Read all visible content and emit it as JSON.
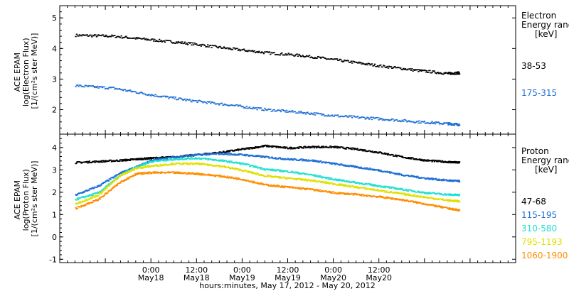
{
  "chart_data": [
    {
      "type": "scatter",
      "name": "electron-panel",
      "ylabel": [
        "ACE EPAM",
        "log(Electron Flux)",
        "[1/(cm²s ster MeV)]"
      ],
      "ylim": [
        1.2,
        5.4
      ],
      "yticks": [
        2,
        3,
        4,
        5
      ],
      "legend_title": [
        "Electron",
        "Energy ranges",
        "[keV]"
      ],
      "series": [
        {
          "name": "38-53",
          "color": "#000000",
          "x": [
            -20,
            -10,
            0,
            10,
            20,
            30,
            40,
            50,
            60,
            70,
            78,
            81
          ],
          "y": [
            4.45,
            4.42,
            4.3,
            4.18,
            4.02,
            3.88,
            3.78,
            3.62,
            3.45,
            3.3,
            3.2,
            3.22
          ]
        },
        {
          "name": "175-315",
          "color": "#1f6fd6",
          "x": [
            -20,
            -10,
            0,
            10,
            20,
            30,
            40,
            50,
            60,
            70,
            78,
            81
          ],
          "y": [
            2.8,
            2.72,
            2.5,
            2.32,
            2.18,
            2.02,
            1.92,
            1.8,
            1.72,
            1.62,
            1.56,
            1.53
          ]
        }
      ]
    },
    {
      "type": "scatter",
      "name": "proton-panel",
      "ylabel": [
        "ACE EPAM",
        "log(Proton Flux)",
        "[1/(cm²s ster MeV)]"
      ],
      "ylim": [
        -1.15,
        4.6
      ],
      "yticks": [
        -1,
        0,
        1,
        2,
        3,
        4
      ],
      "legend_title": [
        "Proton",
        "Energy ranges",
        "[keV]"
      ],
      "series": [
        {
          "name": "47-68",
          "color": "#000000",
          "x": [
            -20,
            -14,
            -8,
            -4,
            0,
            6,
            12,
            18,
            24,
            30,
            36,
            42,
            48,
            54,
            60,
            66,
            72,
            78,
            81
          ],
          "y": [
            3.35,
            3.4,
            3.45,
            3.5,
            3.55,
            3.6,
            3.7,
            3.8,
            3.95,
            4.1,
            4.0,
            4.05,
            4.05,
            3.95,
            3.8,
            3.6,
            3.45,
            3.38,
            3.35
          ]
        },
        {
          "name": "115-195",
          "color": "#1f6fd6",
          "x": [
            -20,
            -14,
            -8,
            -4,
            0,
            6,
            12,
            18,
            24,
            30,
            36,
            42,
            48,
            54,
            60,
            66,
            72,
            78,
            81
          ],
          "y": [
            1.9,
            2.3,
            2.9,
            3.15,
            3.45,
            3.6,
            3.7,
            3.75,
            3.7,
            3.6,
            3.5,
            3.45,
            3.3,
            3.15,
            3.0,
            2.8,
            2.65,
            2.55,
            2.52
          ]
        },
        {
          "name": "310-580",
          "color": "#23e0d0",
          "x": [
            -20,
            -14,
            -8,
            -4,
            0,
            6,
            12,
            18,
            24,
            30,
            36,
            42,
            48,
            54,
            60,
            66,
            72,
            78,
            81
          ],
          "y": [
            1.7,
            2.0,
            2.8,
            3.15,
            3.4,
            3.5,
            3.55,
            3.45,
            3.3,
            3.05,
            2.95,
            2.8,
            2.6,
            2.45,
            2.3,
            2.15,
            2.0,
            1.92,
            1.9
          ]
        },
        {
          "name": "795-1193",
          "color": "#e0e000",
          "x": [
            -20,
            -14,
            -8,
            -4,
            0,
            6,
            12,
            18,
            24,
            30,
            36,
            42,
            48,
            54,
            60,
            66,
            72,
            78,
            81
          ],
          "y": [
            1.5,
            1.9,
            2.8,
            3.1,
            3.2,
            3.3,
            3.3,
            3.2,
            3.0,
            2.75,
            2.65,
            2.55,
            2.4,
            2.25,
            2.1,
            1.95,
            1.8,
            1.66,
            1.62
          ]
        },
        {
          "name": "1060-1900",
          "color": "#ff8c00",
          "x": [
            -20,
            -14,
            -8,
            -4,
            0,
            6,
            12,
            18,
            24,
            30,
            36,
            42,
            48,
            54,
            60,
            66,
            72,
            78,
            81
          ],
          "y": [
            1.3,
            1.7,
            2.5,
            2.85,
            2.9,
            2.9,
            2.85,
            2.75,
            2.6,
            2.35,
            2.25,
            2.15,
            2.0,
            1.92,
            1.82,
            1.68,
            1.5,
            1.3,
            1.22
          ]
        }
      ]
    }
  ],
  "x_axis": {
    "range_hours": [
      -24,
      96
    ],
    "ticks": [
      {
        "h": 0,
        "time": "0:00",
        "date": "May18"
      },
      {
        "h": 12,
        "time": "12:00",
        "date": "May18"
      },
      {
        "h": 24,
        "time": "0:00",
        "date": "May19"
      },
      {
        "h": 36,
        "time": "12:00",
        "date": "May19"
      },
      {
        "h": 48,
        "time": "0:00",
        "date": "May20"
      },
      {
        "h": 60,
        "time": "12:00",
        "date": "May20"
      }
    ],
    "title": "hours:minutes, May 17, 2012 - May 20, 2012"
  }
}
